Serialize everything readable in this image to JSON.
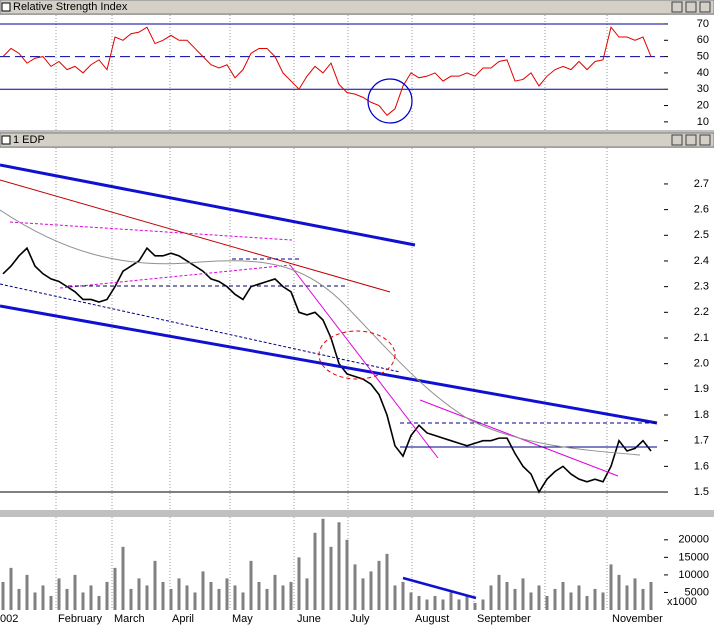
{
  "chart_data": [
    {
      "type": "line",
      "title": "Relative Strength Index",
      "color": "#e00000",
      "values": [
        50,
        55,
        52,
        46,
        49,
        50,
        44,
        47,
        42,
        44,
        40,
        45,
        48,
        42,
        62,
        60,
        64,
        65,
        68,
        58,
        60,
        63,
        60,
        60,
        55,
        50,
        45,
        43,
        45,
        37,
        42,
        52,
        55,
        55,
        50,
        40,
        35,
        30,
        38,
        44,
        40,
        46,
        33,
        28,
        27,
        25,
        22,
        20,
        14,
        18,
        32,
        40,
        37,
        38,
        40,
        35,
        38,
        38,
        40,
        38,
        43,
        43,
        47,
        48,
        35,
        36,
        40,
        32,
        38,
        42,
        44,
        42,
        47,
        42,
        47,
        48,
        68,
        62,
        62,
        60,
        62,
        50
      ],
      "ylim": [
        5,
        75.5
      ],
      "yticks": [
        70,
        60,
        50,
        40,
        30,
        20,
        10
      ],
      "hlines": [
        70,
        30
      ],
      "dashed_hlines": [
        50
      ]
    },
    {
      "type": "line",
      "title": "1 EDP",
      "color": "#000000",
      "values": [
        2.35,
        2.38,
        2.42,
        2.45,
        2.38,
        2.35,
        2.33,
        2.32,
        2.3,
        2.28,
        2.25,
        2.25,
        2.24,
        2.25,
        2.3,
        2.36,
        2.38,
        2.4,
        2.45,
        2.42,
        2.42,
        2.43,
        2.42,
        2.4,
        2.38,
        2.36,
        2.33,
        2.32,
        2.3,
        2.27,
        2.25,
        2.3,
        2.31,
        2.32,
        2.33,
        2.3,
        2.28,
        2.2,
        2.19,
        2.2,
        2.17,
        2.1,
        2.0,
        1.96,
        1.95,
        1.94,
        1.92,
        1.88,
        1.8,
        1.68,
        1.64,
        1.72,
        1.76,
        1.73,
        1.72,
        1.71,
        1.7,
        1.69,
        1.68,
        1.69,
        1.7,
        1.7,
        1.71,
        1.71,
        1.65,
        1.6,
        1.57,
        1.5,
        1.55,
        1.58,
        1.6,
        1.57,
        1.55,
        1.54,
        1.55,
        1.54,
        1.6,
        1.7,
        1.66,
        1.67,
        1.7,
        1.66
      ],
      "ylim": [
        1.43,
        2.84
      ],
      "yticks": [
        2.7,
        2.6,
        2.5,
        2.4,
        2.3,
        2.2,
        2.1,
        {
          "value": 2,
          "label": "2.0"
        },
        1.9,
        1.8,
        1.7,
        1.6,
        1.5
      ],
      "hlines": [
        1.5
      ]
    },
    {
      "type": "bar",
      "color": "#808080",
      "values": [
        8000,
        12000,
        6000,
        10000,
        5000,
        7000,
        4000,
        9000,
        6000,
        10000,
        5000,
        7000,
        4000,
        8000,
        12000,
        18000,
        6000,
        9000,
        7000,
        14000,
        8000,
        6000,
        9000,
        7000,
        5000,
        11000,
        8000,
        6000,
        9000,
        7000,
        5000,
        14000,
        8000,
        6000,
        10000,
        7000,
        8000,
        15000,
        9000,
        22000,
        26000,
        18000,
        25000,
        20000,
        13000,
        9000,
        11000,
        14000,
        16000,
        7000,
        8000,
        5000,
        4000,
        3000,
        4000,
        3000,
        5000,
        3000,
        4000,
        2000,
        3000,
        7000,
        10000,
        8000,
        6000,
        9000,
        5000,
        7000,
        4000,
        6000,
        8000,
        5000,
        7000,
        4000,
        6000,
        5000,
        13000,
        10000,
        7000,
        9000,
        6000,
        8000
      ],
      "ylim": [
        0,
        26500
      ],
      "yticks": [
        20000,
        15000,
        10000,
        5000
      ],
      "unit_label": "x1000"
    }
  ],
  "x_labels": [
    "002",
    "February",
    "March",
    "April",
    "May",
    "June",
    "July",
    "August",
    "September",
    "November"
  ]
}
